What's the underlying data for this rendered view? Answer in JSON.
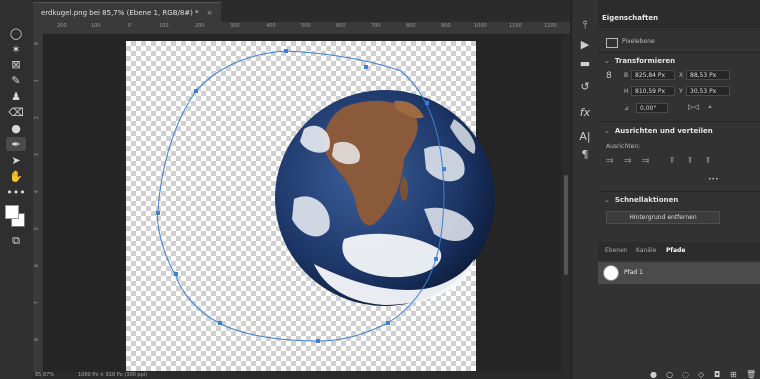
{
  "document_tab": {
    "title": "erdkugel.png bei 85,7% (Ebene 1, RGB/8#) *",
    "close": "×"
  },
  "ruler": {
    "top_ticks": [
      "200",
      "100",
      "0",
      "100",
      "200",
      "300",
      "400",
      "500",
      "600",
      "700",
      "800",
      "900",
      "1000",
      "1100",
      "1200"
    ],
    "left_ticks": [
      "0",
      "1",
      "2",
      "3",
      "4",
      "5",
      "6",
      "7",
      "8"
    ]
  },
  "status": {
    "zoom": "85,67%",
    "size": "1000 Px × 918 Px (300 ppi)"
  },
  "toolbar": {
    "icons": [
      "lasso-icon",
      "magic-wand-icon",
      "crop-icon",
      "eyedropper-icon",
      "stamp-icon",
      "eraser-icon",
      "paint-bucket-icon",
      "pen-icon",
      "path-select-icon",
      "hand-icon",
      "more-icon",
      "swap-colors-icon",
      "screen-mode-icon"
    ]
  },
  "properties": {
    "tab": "Eigenschaften",
    "layer_type": "Pixelebene",
    "transform_title": "Transformieren",
    "w_label": "B",
    "w_value": "825,84 Px",
    "x_label": "X",
    "x_value": "88,53 Px",
    "h_label": "H",
    "h_value": "810,59 Px",
    "y_label": "Y",
    "y_value": "30,53 Px",
    "angle_label": "⊿",
    "angle_value": "0,00°",
    "align_title": "Ausrichten und verteilen",
    "align_label": "Ausrichten:",
    "more": "•••",
    "quick_title": "Schnellaktionen",
    "remove_bg": "Hintergrund entfernen"
  },
  "layers_panel": {
    "tabs": [
      "Ebenen",
      "Kanäle",
      "Pfade"
    ],
    "active_tab": "Pfade",
    "path_name": "Pfad 1"
  }
}
